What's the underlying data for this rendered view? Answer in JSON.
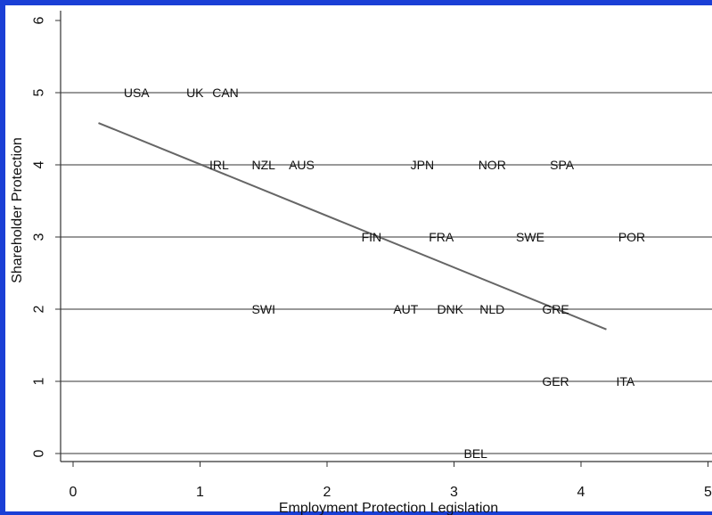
{
  "chart_data": {
    "type": "scatter",
    "title": "",
    "xlabel": "Employment Protection Legislation",
    "ylabel": "Shareholder Protection",
    "xlim": [
      -0.1,
      5
    ],
    "ylim": [
      -0.1,
      6.1
    ],
    "xticks": [
      "0",
      "1",
      "2",
      "3",
      "4",
      "5"
    ],
    "yticks": [
      "0",
      "1",
      "2",
      "3",
      "4",
      "5",
      "6"
    ],
    "grid": "horizontal",
    "points": [
      {
        "label": "USA",
        "x": 0.5,
        "y": 5
      },
      {
        "label": "UK",
        "x": 0.96,
        "y": 5
      },
      {
        "label": "CAN",
        "x": 1.2,
        "y": 5
      },
      {
        "label": "IRL",
        "x": 1.15,
        "y": 4
      },
      {
        "label": "NZL",
        "x": 1.5,
        "y": 4
      },
      {
        "label": "AUS",
        "x": 1.8,
        "y": 4
      },
      {
        "label": "JPN",
        "x": 2.75,
        "y": 4
      },
      {
        "label": "NOR",
        "x": 3.3,
        "y": 4
      },
      {
        "label": "SPA",
        "x": 3.85,
        "y": 4
      },
      {
        "label": "FIN",
        "x": 2.35,
        "y": 3
      },
      {
        "label": "FRA",
        "x": 2.9,
        "y": 3
      },
      {
        "label": "SWE",
        "x": 3.6,
        "y": 3
      },
      {
        "label": "POR",
        "x": 4.4,
        "y": 3
      },
      {
        "label": "SWI",
        "x": 1.5,
        "y": 2
      },
      {
        "label": "AUT",
        "x": 2.62,
        "y": 2
      },
      {
        "label": "DNK",
        "x": 2.97,
        "y": 2
      },
      {
        "label": "NLD",
        "x": 3.3,
        "y": 2
      },
      {
        "label": "GRE",
        "x": 3.8,
        "y": 2
      },
      {
        "label": "GER",
        "x": 3.8,
        "y": 1
      },
      {
        "label": "ITA",
        "x": 4.35,
        "y": 1
      },
      {
        "label": "BEL",
        "x": 3.17,
        "y": 0
      }
    ],
    "fit_line": {
      "x": [
        0.2,
        4.2
      ],
      "y": [
        4.58,
        1.72
      ]
    },
    "colors": {
      "frame": "#1a3fd6",
      "grid": "#999999",
      "fit": "#666666",
      "text": "#111111"
    }
  }
}
